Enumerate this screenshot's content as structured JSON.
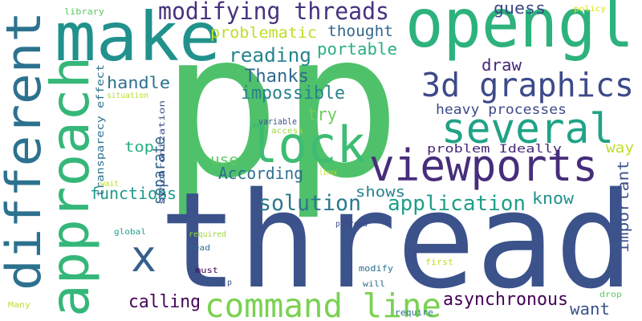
{
  "words": [
    {
      "text": "pp",
      "color": "#4fc16b"
    },
    {
      "text": "thread",
      "color": "#3b528b"
    },
    {
      "text": "opengl",
      "color": "#2db27d"
    },
    {
      "text": "make",
      "color": "#21918c"
    },
    {
      "text": "different",
      "color": "#2c728e"
    },
    {
      "text": "approach",
      "color": "#35b779"
    },
    {
      "text": "lock",
      "color": "#3fbc73"
    },
    {
      "text": "viewports",
      "color": "#472d7b"
    },
    {
      "text": "several",
      "color": "#20a386"
    },
    {
      "text": "3d graphics",
      "color": "#3e4a89"
    },
    {
      "text": "modifying threads",
      "color": "#46327e"
    },
    {
      "text": "command line",
      "color": "#7ad151"
    },
    {
      "text": "x",
      "color": "#35608d"
    },
    {
      "text": "solution",
      "color": "#2a788e"
    },
    {
      "text": "application",
      "color": "#1f9e89"
    },
    {
      "text": "asynchronous",
      "color": "#440154"
    },
    {
      "text": "calling",
      "color": "#450457"
    },
    {
      "text": "want",
      "color": "#3b528b"
    },
    {
      "text": "Thanks",
      "color": "#31688e"
    },
    {
      "text": "impossible",
      "color": "#26828e"
    },
    {
      "text": "reading",
      "color": "#25858e"
    },
    {
      "text": "portable",
      "color": "#29af7f"
    },
    {
      "text": "problematic",
      "color": "#bddf26"
    },
    {
      "text": "thought",
      "color": "#31688e"
    },
    {
      "text": "guess",
      "color": "#3e4a89"
    },
    {
      "text": "policy",
      "color": "#d8e219"
    },
    {
      "text": "library",
      "color": "#5ec962"
    },
    {
      "text": "draw",
      "color": "#482878"
    },
    {
      "text": "try",
      "color": "#6ccd5a"
    },
    {
      "text": "handle",
      "color": "#2c728e"
    },
    {
      "text": "heavy processes",
      "color": "#3e4989"
    },
    {
      "text": "top",
      "color": "#26ad81"
    },
    {
      "text": "separate",
      "color": "#31688e"
    },
    {
      "text": "use",
      "color": "#5ec962"
    },
    {
      "text": "According",
      "color": "#2d708e"
    },
    {
      "text": "shows",
      "color": "#26828e"
    },
    {
      "text": "functions",
      "color": "#1f9a8a"
    },
    {
      "text": "know",
      "color": "#21918c"
    },
    {
      "text": "problem Ideally",
      "color": "#482878"
    },
    {
      "text": "way",
      "color": "#bddf26"
    },
    {
      "text": "important",
      "color": "#3b528b"
    },
    {
      "text": "transparecy effect",
      "color": "#2c728e"
    },
    {
      "text": "situation",
      "color": "#b5de2b"
    },
    {
      "text": "synchronization",
      "color": "#3b528b"
    },
    {
      "text": "variable",
      "color": "#3b528b"
    },
    {
      "text": "access",
      "color": "#a0da39"
    },
    {
      "text": "linux",
      "color": "#bddf26"
    },
    {
      "text": "wait",
      "color": "#bddf26"
    },
    {
      "text": "global",
      "color": "#1f9e89"
    },
    {
      "text": "required",
      "color": "#a0da39"
    },
    {
      "text": "read",
      "color": "#31688e"
    },
    {
      "text": "must",
      "color": "#440154"
    },
    {
      "text": "p",
      "color": "#3b528b"
    },
    {
      "text": "pthread",
      "color": "#3e4989"
    },
    {
      "text": "first",
      "color": "#bddf26"
    },
    {
      "text": "modify",
      "color": "#2c728e"
    },
    {
      "text": "will",
      "color": "#31688e"
    },
    {
      "text": "require",
      "color": "#2c728e"
    },
    {
      "text": "drop",
      "color": "#5ec962"
    },
    {
      "text": "Many",
      "color": "#bddf26"
    }
  ]
}
